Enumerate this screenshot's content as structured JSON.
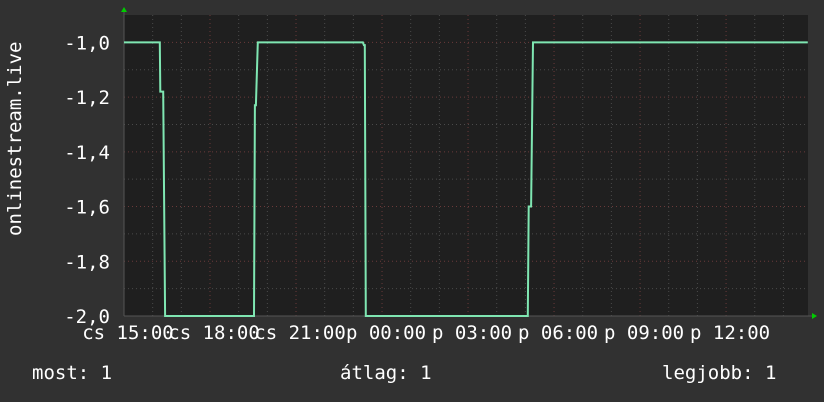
{
  "chart_data": {
    "type": "line",
    "ylabel": "onlinestream.live",
    "ylim": [
      -2.0,
      -0.9
    ],
    "y_ticks": [
      "-1,0",
      "-1,2",
      "-1,4",
      "-1,6",
      "-1,8",
      "-2,0"
    ],
    "y_tick_values": [
      -1.0,
      -1.2,
      -1.4,
      -1.6,
      -1.8,
      -2.0
    ],
    "x_range": [
      {
        "day": "cs",
        "time": "15:00"
      },
      {
        "day": "p",
        "time": "14:51"
      }
    ],
    "x_ticks": [
      "cs 15:00",
      "cs 18:00",
      "cs 21:00",
      "p 00:00",
      "p 03:00",
      "p 06:00",
      "p 09:00",
      "p 12:00"
    ],
    "grid": true,
    "colors": {
      "background": "#313131",
      "plot": "#1f1f1f",
      "line": "#7fe6b2",
      "major_grid": "#6a3a3a",
      "minor_grid": "#4a4a4a",
      "arrow": "#00cc00"
    },
    "series": [
      {
        "points": [
          {
            "day": "cs",
            "time": "15:00",
            "value": -1.0
          },
          {
            "day": "cs",
            "time": "16:15",
            "value": -1.0
          },
          {
            "day": "cs",
            "time": "16:16",
            "value": -1.18
          },
          {
            "day": "cs",
            "time": "16:22",
            "value": -1.18
          },
          {
            "day": "cs",
            "time": "16:26",
            "value": -2.0
          },
          {
            "day": "cs",
            "time": "19:32",
            "value": -2.0
          },
          {
            "day": "cs",
            "time": "19:34",
            "value": -1.23
          },
          {
            "day": "cs",
            "time": "19:36",
            "value": -1.23
          },
          {
            "day": "cs",
            "time": "19:40",
            "value": -1.0
          },
          {
            "day": "cs",
            "time": "23:20",
            "value": -1.0
          },
          {
            "day": "cs",
            "time": "23:22",
            "value": -1.01
          },
          {
            "day": "cs",
            "time": "23:24",
            "value": -1.01
          },
          {
            "day": "cs",
            "time": "23:26",
            "value": -2.0
          },
          {
            "day": "p",
            "time": "05:05",
            "value": -2.0
          },
          {
            "day": "p",
            "time": "05:07",
            "value": -1.6
          },
          {
            "day": "p",
            "time": "05:12",
            "value": -1.6
          },
          {
            "day": "p",
            "time": "05:16",
            "value": -1.0
          },
          {
            "day": "p",
            "time": "14:51",
            "value": -1.0
          }
        ]
      }
    ]
  },
  "legend": {
    "current": "most: 1",
    "average": "átlag: 1",
    "max": "legjobb: 1"
  }
}
